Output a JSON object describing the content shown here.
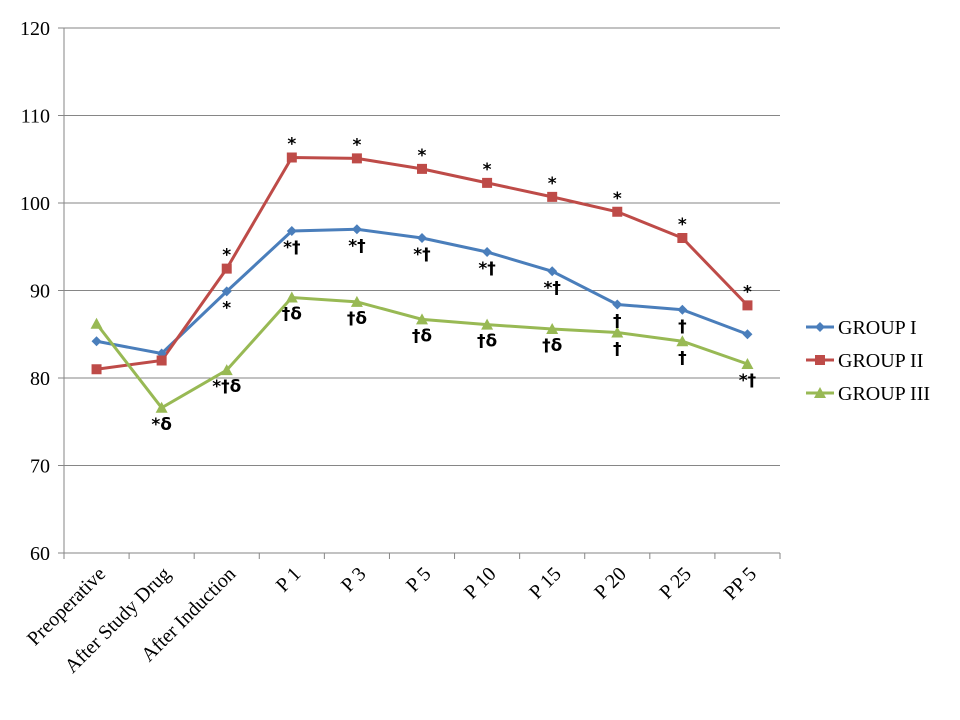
{
  "chart_data": {
    "type": "line",
    "categories": [
      "Preoperative",
      "After Study Drug",
      "After Induction",
      "P 1",
      "P 3",
      "P 5",
      "P 10",
      "P 15",
      "P 20",
      "P 25",
      "PP 5"
    ],
    "series": [
      {
        "name": "GROUP I",
        "color": "#4a7ebb",
        "marker": "diamond",
        "values": [
          84.2,
          82.8,
          89.9,
          96.8,
          97.0,
          96.0,
          94.4,
          92.2,
          88.4,
          87.8,
          85.0
        ],
        "point_labels": [
          null,
          null,
          "*",
          "*†",
          "*†",
          "*†",
          "*†",
          "*†",
          "†",
          "†",
          null
        ]
      },
      {
        "name": "GROUP II",
        "color": "#be4b48",
        "marker": "square",
        "values": [
          81.0,
          82.0,
          92.5,
          105.2,
          105.1,
          103.9,
          102.3,
          100.7,
          99.0,
          96.0,
          88.3
        ],
        "point_labels": [
          null,
          null,
          "*",
          "*",
          "*",
          "*",
          "*",
          "*",
          "*",
          "*",
          "*"
        ]
      },
      {
        "name": "GROUP III",
        "color": "#98b954",
        "marker": "triangle",
        "values": [
          86.2,
          76.6,
          80.9,
          89.2,
          88.7,
          86.7,
          86.1,
          85.6,
          85.2,
          84.2,
          81.6
        ],
        "point_labels": [
          null,
          "*δ",
          "*†δ",
          "†δ",
          "†δ",
          "†δ",
          "†δ",
          "†δ",
          "†",
          "†",
          "*†"
        ]
      }
    ],
    "ylim": [
      60,
      120
    ],
    "yticks": [
      60,
      70,
      80,
      90,
      100,
      110,
      120
    ],
    "grid": true,
    "legend": "right"
  }
}
